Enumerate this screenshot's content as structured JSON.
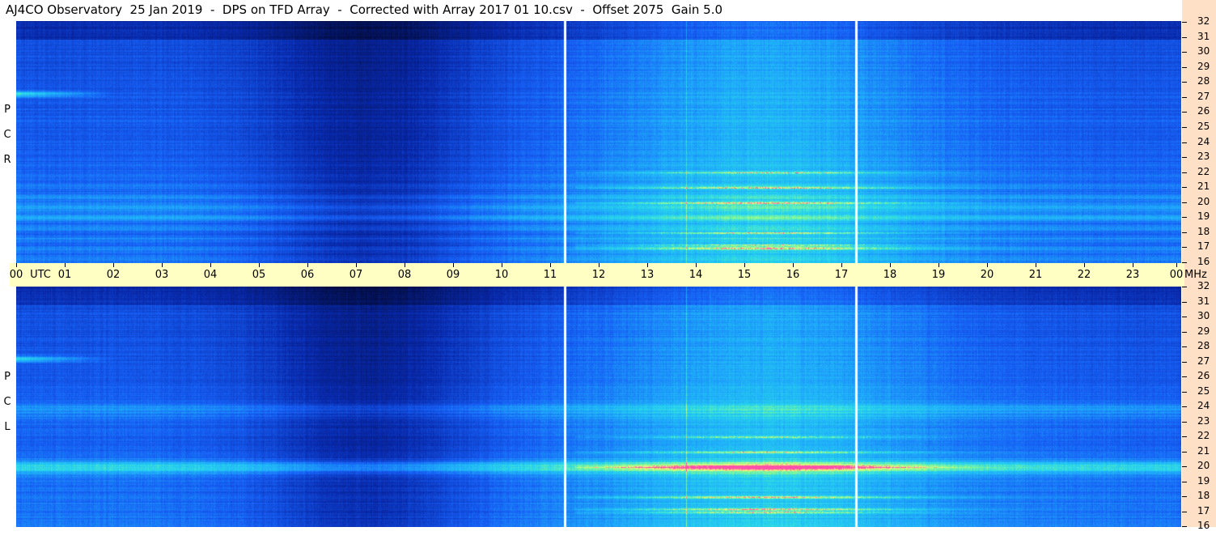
{
  "title": "AJ4CO Observatory  25 Jan 2019  -  DPS on TFD Array  -  Corrected with Array 2017 01 10.csv  -  Offset 2075  Gain 5.0",
  "panels": {
    "top_label": [
      "R",
      "C",
      "P"
    ],
    "bottom_label": [
      "L",
      "C",
      "P"
    ]
  },
  "time_axis": {
    "labels": [
      "00",
      "UTC",
      "01",
      "02",
      "03",
      "04",
      "05",
      "06",
      "07",
      "08",
      "09",
      "10",
      "11",
      "12",
      "13",
      "14",
      "15",
      "16",
      "17",
      "18",
      "19",
      "20",
      "21",
      "22",
      "23",
      "00"
    ],
    "unit": "MHz"
  },
  "freq_axis_labels": [
    "32",
    "31",
    "30",
    "29",
    "28",
    "27",
    "26",
    "25",
    "24",
    "23",
    "22",
    "21",
    "20",
    "19",
    "18",
    "17",
    "16"
  ],
  "chart_data": {
    "type": "heatmap",
    "title": "AJ4CO Observatory  25 Jan 2019  -  DPS on TFD Array  -  Corrected with Array 2017 01 10.csv  -  Offset 2075  Gain 5.0",
    "xlabel": "UTC",
    "ylabel": "MHz",
    "xlim": [
      0,
      24
    ],
    "ylim": [
      16,
      32
    ],
    "series": [
      {
        "name": "R C P",
        "gaps_utc": [
          11.3,
          17.3
        ]
      },
      {
        "name": "L C P",
        "gaps_utc": [
          11.3,
          17.3
        ]
      }
    ],
    "bright_bands_mhz": [
      27,
      22,
      21,
      20,
      18,
      17
    ]
  },
  "colors": {
    "background": "#ffffff",
    "timebar": "#ffffc4",
    "rightstrip": "#fde0c6",
    "low": "#03104a",
    "mid": "#1f6bff",
    "high": "#28d3f0",
    "hot": "#c8ff64",
    "peak": "#ff3aa0"
  }
}
